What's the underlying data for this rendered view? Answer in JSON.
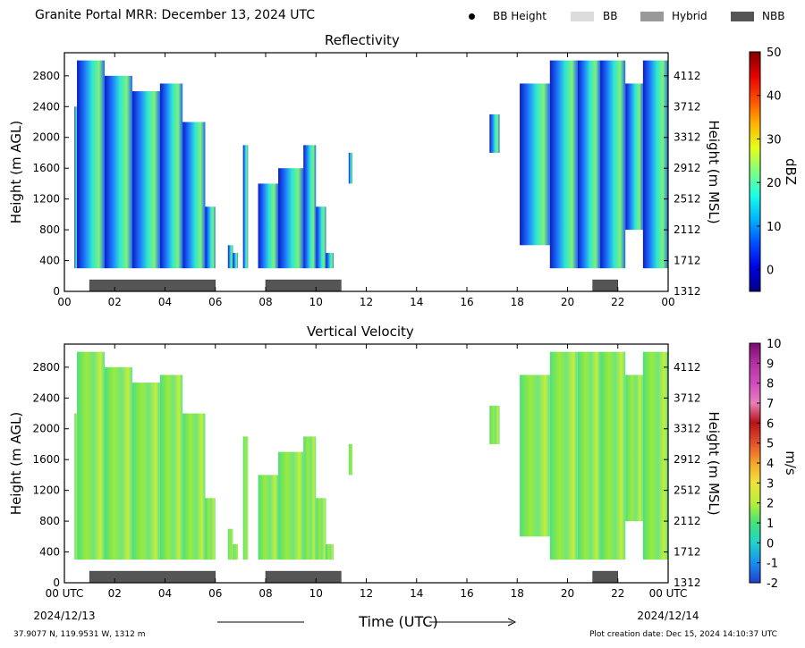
{
  "header": {
    "title": "Granite Portal MRR:  December 13, 2024 UTC",
    "legend": [
      {
        "label": "BB Height",
        "marker": "dot",
        "color": "#000000"
      },
      {
        "label": "BB",
        "marker": "box",
        "color": "#dcdcdc"
      },
      {
        "label": "Hybrid",
        "marker": "box",
        "color": "#999999"
      },
      {
        "label": "NBB",
        "marker": "box",
        "color": "#555555"
      }
    ]
  },
  "chart_data": [
    {
      "type": "heatmap",
      "title": "Reflectivity",
      "ylabel": "Height (m AGL)",
      "ylabel_right": "Height (m MSL)",
      "xlim": [
        0,
        24
      ],
      "ylim": [
        0,
        3100
      ],
      "x_ticks": [
        "00",
        "02",
        "04",
        "06",
        "08",
        "10",
        "12",
        "14",
        "16",
        "18",
        "20",
        "22",
        "00"
      ],
      "y_ticks": [
        "0",
        "400",
        "800",
        "1200",
        "1600",
        "2000",
        "2400",
        "2800"
      ],
      "y_right_ticks": [
        "1312",
        "1712",
        "2112",
        "2512",
        "2912",
        "3312",
        "3712",
        "4112"
      ],
      "colorbar": {
        "label": "dBZ",
        "range": [
          -5,
          50
        ],
        "ticks": [
          "0",
          "10",
          "20",
          "30",
          "40",
          "50"
        ]
      },
      "echo_columns": [
        {
          "x": [
            0.4,
            0.5
          ],
          "y": [
            300,
            2400
          ]
        },
        {
          "x": [
            0.5,
            1.6
          ],
          "y": [
            300,
            3000
          ]
        },
        {
          "x": [
            1.6,
            2.7
          ],
          "y": [
            300,
            2800
          ]
        },
        {
          "x": [
            2.7,
            3.8
          ],
          "y": [
            300,
            2600
          ]
        },
        {
          "x": [
            3.8,
            4.7
          ],
          "y": [
            300,
            2700
          ]
        },
        {
          "x": [
            4.7,
            5.6
          ],
          "y": [
            300,
            2200
          ]
        },
        {
          "x": [
            5.6,
            6.0
          ],
          "y": [
            300,
            1100
          ]
        },
        {
          "x": [
            6.5,
            6.7
          ],
          "y": [
            300,
            600
          ]
        },
        {
          "x": [
            6.7,
            6.9
          ],
          "y": [
            300,
            500
          ]
        },
        {
          "x": [
            7.1,
            7.3
          ],
          "y": [
            300,
            1900
          ]
        },
        {
          "x": [
            7.7,
            8.5
          ],
          "y": [
            300,
            1400
          ]
        },
        {
          "x": [
            8.5,
            9.5
          ],
          "y": [
            300,
            1600
          ]
        },
        {
          "x": [
            9.5,
            10.0
          ],
          "y": [
            300,
            1900
          ]
        },
        {
          "x": [
            10.0,
            10.4
          ],
          "y": [
            300,
            1100
          ]
        },
        {
          "x": [
            10.4,
            10.7
          ],
          "y": [
            300,
            500
          ]
        },
        {
          "x": [
            11.3,
            11.45
          ],
          "y": [
            1400,
            1800
          ]
        },
        {
          "x": [
            16.9,
            17.3
          ],
          "y": [
            1800,
            2300
          ]
        },
        {
          "x": [
            18.1,
            19.3
          ],
          "y": [
            600,
            2700
          ]
        },
        {
          "x": [
            19.3,
            20.4
          ],
          "y": [
            300,
            3000
          ]
        },
        {
          "x": [
            20.4,
            21.3
          ],
          "y": [
            300,
            3000
          ]
        },
        {
          "x": [
            21.3,
            22.3
          ],
          "y": [
            300,
            3000
          ]
        },
        {
          "x": [
            22.3,
            23.0
          ],
          "y": [
            800,
            2700
          ]
        },
        {
          "x": [
            23.0,
            24.0
          ],
          "y": [
            300,
            3000
          ]
        }
      ],
      "nbb_bars": [
        {
          "start": 1.0,
          "end": 6.0
        },
        {
          "start": 8.0,
          "end": 11.0
        },
        {
          "start": 21.0,
          "end": 22.0
        }
      ]
    },
    {
      "type": "heatmap",
      "title": "Vertical Velocity",
      "ylabel": "Height (m AGL)",
      "ylabel_right": "Height (m MSL)",
      "xlabel": "Time (UTC)",
      "xlim": [
        0,
        24
      ],
      "ylim": [
        0,
        3100
      ],
      "x_ticks": [
        "00 UTC",
        "02",
        "04",
        "06",
        "08",
        "10",
        "12",
        "14",
        "16",
        "18",
        "20",
        "22",
        "00 UTC"
      ],
      "x_date_left": "2024/12/13",
      "x_date_right": "2024/12/14",
      "y_ticks": [
        "0",
        "400",
        "800",
        "1200",
        "1600",
        "2000",
        "2400",
        "2800"
      ],
      "y_right_ticks": [
        "1312",
        "1712",
        "2112",
        "2512",
        "2912",
        "3312",
        "3712",
        "4112"
      ],
      "colorbar": {
        "label": "m/s",
        "range": [
          -2,
          10
        ],
        "ticks": [
          "-2",
          "-1",
          "0",
          "1",
          "2",
          "3",
          "4",
          "5",
          "6",
          "7",
          "8",
          "9",
          "10"
        ]
      },
      "echo_columns": [
        {
          "x": [
            0.4,
            0.5
          ],
          "y": [
            300,
            2200
          ]
        },
        {
          "x": [
            0.5,
            1.6
          ],
          "y": [
            300,
            3000
          ]
        },
        {
          "x": [
            1.6,
            2.7
          ],
          "y": [
            300,
            2800
          ]
        },
        {
          "x": [
            2.7,
            3.8
          ],
          "y": [
            300,
            2600
          ]
        },
        {
          "x": [
            3.8,
            4.7
          ],
          "y": [
            300,
            2700
          ]
        },
        {
          "x": [
            4.7,
            5.6
          ],
          "y": [
            300,
            2200
          ]
        },
        {
          "x": [
            5.6,
            6.0
          ],
          "y": [
            300,
            1100
          ]
        },
        {
          "x": [
            6.5,
            6.7
          ],
          "y": [
            300,
            700
          ]
        },
        {
          "x": [
            6.7,
            6.9
          ],
          "y": [
            300,
            500
          ]
        },
        {
          "x": [
            7.1,
            7.3
          ],
          "y": [
            300,
            1900
          ]
        },
        {
          "x": [
            7.7,
            8.5
          ],
          "y": [
            300,
            1400
          ]
        },
        {
          "x": [
            8.5,
            9.5
          ],
          "y": [
            300,
            1700
          ]
        },
        {
          "x": [
            9.5,
            10.0
          ],
          "y": [
            300,
            1900
          ]
        },
        {
          "x": [
            10.0,
            10.4
          ],
          "y": [
            300,
            1100
          ]
        },
        {
          "x": [
            10.4,
            10.7
          ],
          "y": [
            300,
            500
          ]
        },
        {
          "x": [
            11.3,
            11.45
          ],
          "y": [
            1400,
            1800
          ]
        },
        {
          "x": [
            16.9,
            17.3
          ],
          "y": [
            1800,
            2300
          ]
        },
        {
          "x": [
            18.1,
            19.3
          ],
          "y": [
            600,
            2700
          ]
        },
        {
          "x": [
            19.3,
            20.4
          ],
          "y": [
            300,
            3000
          ]
        },
        {
          "x": [
            20.4,
            21.3
          ],
          "y": [
            300,
            3000
          ]
        },
        {
          "x": [
            21.3,
            22.3
          ],
          "y": [
            300,
            3000
          ]
        },
        {
          "x": [
            22.3,
            23.0
          ],
          "y": [
            800,
            2700
          ]
        },
        {
          "x": [
            23.0,
            24.0
          ],
          "y": [
            300,
            3000
          ]
        }
      ],
      "nbb_bars": [
        {
          "start": 1.0,
          "end": 6.0
        },
        {
          "start": 8.0,
          "end": 11.0
        },
        {
          "start": 21.0,
          "end": 22.0
        }
      ]
    }
  ],
  "footer": {
    "location": "37.9077 N, 119.9531 W, 1312 m",
    "creation": "Plot creation date: Dec 15, 2024 14:10:37 UTC"
  }
}
